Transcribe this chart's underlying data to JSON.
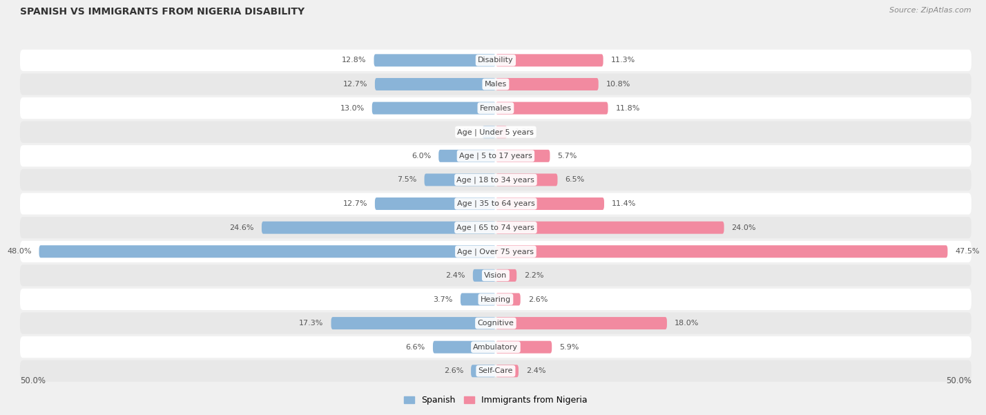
{
  "title": "SPANISH VS IMMIGRANTS FROM NIGERIA DISABILITY",
  "source": "Source: ZipAtlas.com",
  "categories": [
    "Disability",
    "Males",
    "Females",
    "Age | Under 5 years",
    "Age | 5 to 17 years",
    "Age | 18 to 34 years",
    "Age | 35 to 64 years",
    "Age | 65 to 74 years",
    "Age | Over 75 years",
    "Vision",
    "Hearing",
    "Cognitive",
    "Ambulatory",
    "Self-Care"
  ],
  "spanish_values": [
    12.8,
    12.7,
    13.0,
    1.4,
    6.0,
    7.5,
    12.7,
    24.6,
    48.0,
    2.4,
    3.7,
    17.3,
    6.6,
    2.6
  ],
  "nigeria_values": [
    11.3,
    10.8,
    11.8,
    1.2,
    5.7,
    6.5,
    11.4,
    24.0,
    47.5,
    2.2,
    2.6,
    18.0,
    5.9,
    2.4
  ],
  "spanish_color": "#8ab4d8",
  "nigeria_color": "#f28aa0",
  "axis_max": 50.0,
  "bg_color": "#f0f0f0",
  "row_bg_white": "#ffffff",
  "row_bg_gray": "#e8e8e8",
  "bar_height": 0.52,
  "title_fontsize": 10,
  "label_fontsize": 8,
  "value_fontsize": 8
}
